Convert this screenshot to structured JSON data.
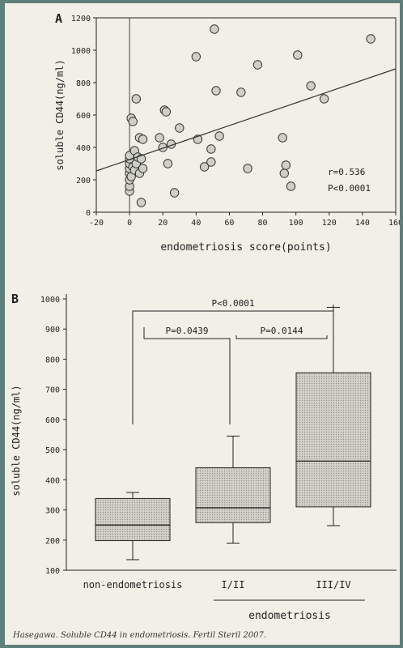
{
  "caption": "Hasegawa. Soluble CD44 in endometriosis. Fertil Steril 2007.",
  "colors": {
    "background_border": "#5f7f7a",
    "card": "#f2efe6",
    "box_fill": "#c9c9c0",
    "point_fill": "#cfcfc6",
    "ink": "#222222"
  },
  "chart_data": [
    {
      "type": "scatter",
      "panel_label": "A",
      "xlabel": "endometriosis score(points)",
      "ylabel": "soluble CD44(ng/ml)",
      "xlim": [
        -20,
        160
      ],
      "ylim": [
        0,
        1200
      ],
      "xticks": [
        -20,
        0,
        20,
        40,
        60,
        80,
        100,
        120,
        140,
        160
      ],
      "yticks": [
        0,
        200,
        400,
        600,
        800,
        1000,
        1200
      ],
      "points": [
        {
          "x": 0,
          "y": 130
        },
        {
          "x": 0,
          "y": 160
        },
        {
          "x": 0,
          "y": 200
        },
        {
          "x": 0,
          "y": 240
        },
        {
          "x": 0,
          "y": 270
        },
        {
          "x": 0,
          "y": 300
        },
        {
          "x": 0,
          "y": 330
        },
        {
          "x": 0,
          "y": 350
        },
        {
          "x": 1,
          "y": 580
        },
        {
          "x": 2,
          "y": 560
        },
        {
          "x": 1,
          "y": 220
        },
        {
          "x": 2,
          "y": 280
        },
        {
          "x": 3,
          "y": 380
        },
        {
          "x": 3,
          "y": 260
        },
        {
          "x": 4,
          "y": 300
        },
        {
          "x": 4,
          "y": 700
        },
        {
          "x": 5,
          "y": 340
        },
        {
          "x": 6,
          "y": 240
        },
        {
          "x": 6,
          "y": 460
        },
        {
          "x": 7,
          "y": 330
        },
        {
          "x": 7,
          "y": 60
        },
        {
          "x": 8,
          "y": 270
        },
        {
          "x": 8,
          "y": 450
        },
        {
          "x": 18,
          "y": 460
        },
        {
          "x": 20,
          "y": 400
        },
        {
          "x": 21,
          "y": 630
        },
        {
          "x": 22,
          "y": 620
        },
        {
          "x": 23,
          "y": 300
        },
        {
          "x": 25,
          "y": 420
        },
        {
          "x": 27,
          "y": 120
        },
        {
          "x": 30,
          "y": 520
        },
        {
          "x": 40,
          "y": 960
        },
        {
          "x": 41,
          "y": 450
        },
        {
          "x": 45,
          "y": 280
        },
        {
          "x": 49,
          "y": 310
        },
        {
          "x": 49,
          "y": 390
        },
        {
          "x": 51,
          "y": 1130
        },
        {
          "x": 52,
          "y": 750
        },
        {
          "x": 54,
          "y": 470
        },
        {
          "x": 67,
          "y": 740
        },
        {
          "x": 71,
          "y": 270
        },
        {
          "x": 77,
          "y": 910
        },
        {
          "x": 92,
          "y": 460
        },
        {
          "x": 93,
          "y": 240
        },
        {
          "x": 94,
          "y": 290
        },
        {
          "x": 97,
          "y": 160
        },
        {
          "x": 101,
          "y": 970
        },
        {
          "x": 109,
          "y": 780
        },
        {
          "x": 117,
          "y": 700
        },
        {
          "x": 145,
          "y": 1070
        }
      ],
      "regression_line": {
        "x": [
          -20,
          160
        ],
        "y": [
          255,
          885
        ]
      },
      "annotations": [
        "r=0.536",
        "P<0.0001"
      ]
    },
    {
      "type": "box",
      "panel_label": "B",
      "ylabel": "soluble CD44(ng/ml)",
      "ylim": [
        100,
        1000
      ],
      "yticks": [
        100,
        200,
        300,
        400,
        500,
        600,
        700,
        800,
        900,
        1000
      ],
      "categories": [
        "non-endometriosis",
        "I/II",
        "III/IV"
      ],
      "group_label": "endometriosis",
      "boxes": [
        {
          "whisker_low": 135,
          "q1": 198,
          "median": 250,
          "q3": 338,
          "whisker_high": 358
        },
        {
          "whisker_low": 190,
          "q1": 258,
          "median": 307,
          "q3": 440,
          "whisker_high": 545
        },
        {
          "whisker_low": 248,
          "q1": 310,
          "median": 462,
          "q3": 755,
          "whisker_high": 972
        }
      ],
      "comparisons": [
        {
          "from": 0,
          "to": 2,
          "label": "P<0.0001"
        },
        {
          "from": 0,
          "to": 1,
          "label": "P=0.0439"
        },
        {
          "from": 1,
          "to": 2,
          "label": "P=0.0144"
        }
      ]
    }
  ]
}
